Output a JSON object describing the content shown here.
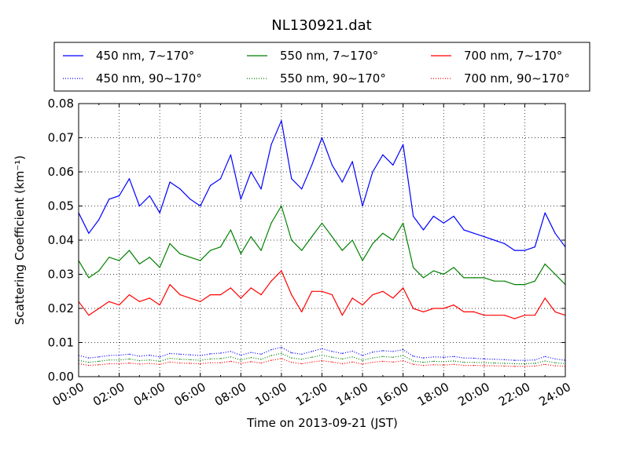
{
  "chart_data": {
    "type": "line",
    "title": "NL130921.dat",
    "xlabel": "Time on 2013-09-21 (JST)",
    "ylabel": "Scattering Coefficient (km⁻¹)",
    "xlim_hours": [
      0,
      24
    ],
    "ylim": [
      0.0,
      0.08
    ],
    "x_ticks": [
      "00:00",
      "02:00",
      "04:00",
      "06:00",
      "08:00",
      "10:00",
      "12:00",
      "14:00",
      "16:00",
      "18:00",
      "20:00",
      "22:00",
      "24:00"
    ],
    "y_ticks": [
      "0.00",
      "0.01",
      "0.02",
      "0.03",
      "0.04",
      "0.05",
      "0.06",
      "0.07",
      "0.08"
    ],
    "grid": true,
    "legend_placement": "top (above plot), 3 columns",
    "x_hours": [
      0,
      0.5,
      1,
      1.5,
      2,
      2.5,
      3,
      3.5,
      4,
      4.5,
      5,
      5.5,
      6,
      6.5,
      7,
      7.5,
      8,
      8.5,
      9,
      9.5,
      10,
      10.5,
      11,
      11.5,
      12,
      12.5,
      13,
      13.5,
      14,
      14.5,
      15,
      15.5,
      16,
      16.5,
      17,
      17.5,
      18,
      18.5,
      19,
      19.5,
      20,
      20.5,
      21,
      21.5,
      22,
      22.5,
      23,
      23.5,
      24
    ],
    "series": [
      {
        "name": "450 nm, 7∼170°",
        "color": "#0000ff",
        "style": "solid",
        "values": [
          0.048,
          0.042,
          0.046,
          0.052,
          0.053,
          0.058,
          0.05,
          0.053,
          0.048,
          0.057,
          0.055,
          0.052,
          0.05,
          0.056,
          0.058,
          0.065,
          0.052,
          0.06,
          0.055,
          0.068,
          0.075,
          0.058,
          0.055,
          0.062,
          0.07,
          0.062,
          0.057,
          0.063,
          0.05,
          0.06,
          0.065,
          0.062,
          0.068,
          0.047,
          0.043,
          0.047,
          0.045,
          0.047,
          0.043,
          0.042,
          0.041,
          0.04,
          0.039,
          0.037,
          0.037,
          0.038,
          0.048,
          0.042,
          0.038
        ]
      },
      {
        "name": "550 nm, 7∼170°",
        "color": "#008000",
        "style": "solid",
        "values": [
          0.034,
          0.029,
          0.031,
          0.035,
          0.034,
          0.037,
          0.033,
          0.035,
          0.032,
          0.039,
          0.036,
          0.035,
          0.034,
          0.037,
          0.038,
          0.043,
          0.036,
          0.041,
          0.037,
          0.045,
          0.05,
          0.04,
          0.037,
          0.041,
          0.045,
          0.041,
          0.037,
          0.04,
          0.034,
          0.039,
          0.042,
          0.04,
          0.045,
          0.032,
          0.029,
          0.031,
          0.03,
          0.032,
          0.029,
          0.029,
          0.029,
          0.028,
          0.028,
          0.027,
          0.027,
          0.028,
          0.033,
          0.03,
          0.027
        ]
      },
      {
        "name": "700 nm, 7∼170°",
        "color": "#ff0000",
        "style": "solid",
        "values": [
          0.022,
          0.018,
          0.02,
          0.022,
          0.021,
          0.024,
          0.022,
          0.023,
          0.021,
          0.027,
          0.024,
          0.023,
          0.022,
          0.024,
          0.024,
          0.026,
          0.023,
          0.026,
          0.024,
          0.028,
          0.031,
          0.024,
          0.019,
          0.025,
          0.025,
          0.024,
          0.018,
          0.023,
          0.021,
          0.024,
          0.025,
          0.023,
          0.026,
          0.02,
          0.019,
          0.02,
          0.02,
          0.021,
          0.019,
          0.019,
          0.018,
          0.018,
          0.018,
          0.017,
          0.018,
          0.018,
          0.023,
          0.019,
          0.018
        ]
      },
      {
        "name": "450 nm, 90∼170°",
        "color": "#0000ff",
        "style": "dotted",
        "values": [
          0.0062,
          0.0055,
          0.0058,
          0.0062,
          0.0063,
          0.0066,
          0.006,
          0.0063,
          0.0058,
          0.0068,
          0.0066,
          0.0064,
          0.0062,
          0.0067,
          0.0069,
          0.0074,
          0.0063,
          0.0071,
          0.0066,
          0.0079,
          0.0086,
          0.007,
          0.0066,
          0.0074,
          0.0082,
          0.0074,
          0.0068,
          0.0075,
          0.0062,
          0.0072,
          0.0076,
          0.0074,
          0.0079,
          0.006,
          0.0055,
          0.0058,
          0.0057,
          0.0059,
          0.0055,
          0.0054,
          0.0052,
          0.0051,
          0.005,
          0.0048,
          0.0048,
          0.0049,
          0.0059,
          0.0052,
          0.0048
        ]
      },
      {
        "name": "550 nm, 90∼170°",
        "color": "#008000",
        "style": "dotted",
        "values": [
          0.0048,
          0.0042,
          0.0045,
          0.0049,
          0.0049,
          0.0052,
          0.0047,
          0.0049,
          0.0045,
          0.0054,
          0.0051,
          0.005,
          0.0048,
          0.0052,
          0.0053,
          0.0058,
          0.0049,
          0.0056,
          0.0051,
          0.0062,
          0.0068,
          0.0055,
          0.0051,
          0.0057,
          0.0063,
          0.0057,
          0.0052,
          0.0058,
          0.0048,
          0.0055,
          0.0059,
          0.0057,
          0.0062,
          0.0046,
          0.0042,
          0.0045,
          0.0044,
          0.0046,
          0.0042,
          0.0042,
          0.0041,
          0.004,
          0.0039,
          0.0038,
          0.0038,
          0.0039,
          0.0046,
          0.0041,
          0.0038
        ]
      },
      {
        "name": "700 nm, 90∼170°",
        "color": "#ff0000",
        "style": "dotted",
        "values": [
          0.0038,
          0.0033,
          0.0035,
          0.0038,
          0.0038,
          0.004,
          0.0037,
          0.0039,
          0.0036,
          0.0043,
          0.004,
          0.0039,
          0.0038,
          0.0041,
          0.0041,
          0.0045,
          0.0039,
          0.0044,
          0.004,
          0.0048,
          0.0053,
          0.0042,
          0.0038,
          0.0043,
          0.0047,
          0.0043,
          0.0038,
          0.0043,
          0.0037,
          0.0042,
          0.0045,
          0.0043,
          0.0047,
          0.0036,
          0.0033,
          0.0035,
          0.0034,
          0.0036,
          0.0033,
          0.0033,
          0.0032,
          0.0032,
          0.0031,
          0.003,
          0.003,
          0.0031,
          0.0036,
          0.0032,
          0.003
        ]
      }
    ]
  }
}
